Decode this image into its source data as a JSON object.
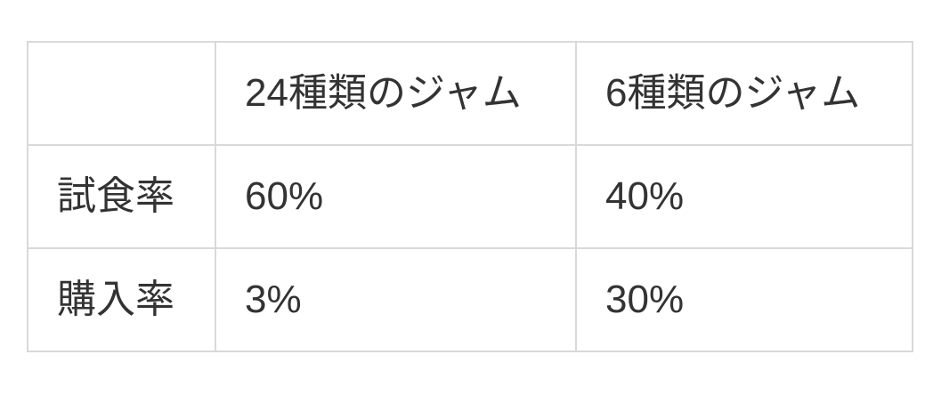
{
  "colors": {
    "border": "#d9d9d9",
    "text": "#333333",
    "background": "#ffffff"
  },
  "table": {
    "columns": [
      "",
      "24種類のジャム",
      "6種類のジャム"
    ],
    "rows": [
      {
        "label": "試食率",
        "values": [
          "60%",
          "40%"
        ]
      },
      {
        "label": "購入率",
        "values": [
          "3%",
          "30%"
        ]
      }
    ]
  },
  "chart_data": {
    "type": "table",
    "columns": [
      "",
      "24種類のジャム",
      "6種類のジャム"
    ],
    "categories": [
      "試食率",
      "購入率"
    ],
    "series": [
      {
        "name": "24種類のジャム",
        "values": [
          60,
          3
        ]
      },
      {
        "name": "6種類のジャム",
        "values": [
          40,
          30
        ]
      }
    ],
    "cells": [
      [
        "試食率",
        "60%",
        "40%"
      ],
      [
        "購入率",
        "3%",
        "30%"
      ]
    ]
  }
}
